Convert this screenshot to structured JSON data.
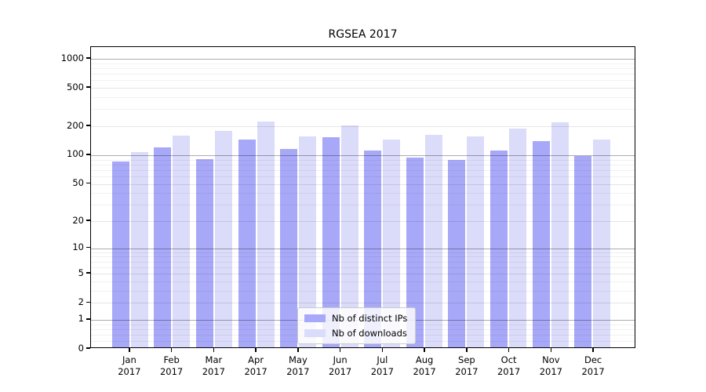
{
  "chart_data": {
    "type": "bar",
    "title": "RGSEA 2017",
    "categories": [
      "Jan",
      "Feb",
      "Mar",
      "Apr",
      "May",
      "Jun",
      "Jul",
      "Aug",
      "Sep",
      "Oct",
      "Nov",
      "Dec"
    ],
    "year_label": "2017",
    "series": [
      {
        "name": "Nb of distinct IPs",
        "color": "#a8a8f8",
        "values": [
          83,
          116,
          88,
          141,
          112,
          147,
          108,
          91,
          86,
          107,
          135,
          95
        ]
      },
      {
        "name": "Nb of downloads",
        "color": "#dbdbfa",
        "values": [
          104,
          155,
          171,
          215,
          152,
          196,
          140,
          157,
          152,
          181,
          210,
          140
        ]
      }
    ],
    "y_axis": {
      "scale": "log1p",
      "tick_values": [
        0,
        1,
        2,
        5,
        10,
        20,
        50,
        100,
        200,
        500,
        1000
      ],
      "tick_labels": [
        "0",
        "1",
        "2",
        "5",
        "10",
        "20",
        "50",
        "100",
        "200",
        "500",
        "1000"
      ],
      "major_grid_values": [
        1,
        10,
        100,
        1000
      ],
      "minor_grid_values": [
        0.2,
        0.4,
        0.6,
        0.8,
        3,
        4,
        6,
        7,
        8,
        9,
        30,
        40,
        60,
        70,
        80,
        90,
        300,
        400,
        600,
        700,
        800,
        900
      ],
      "axis_top_value": 1325
    },
    "grid": true,
    "legend_position": "lower-center"
  },
  "colors": {
    "background": "#ffffff",
    "spine": "#000000",
    "major_grid": "#aeaeae",
    "minor_grid": "#e9e9e9",
    "legend_border": "#cccccc"
  }
}
